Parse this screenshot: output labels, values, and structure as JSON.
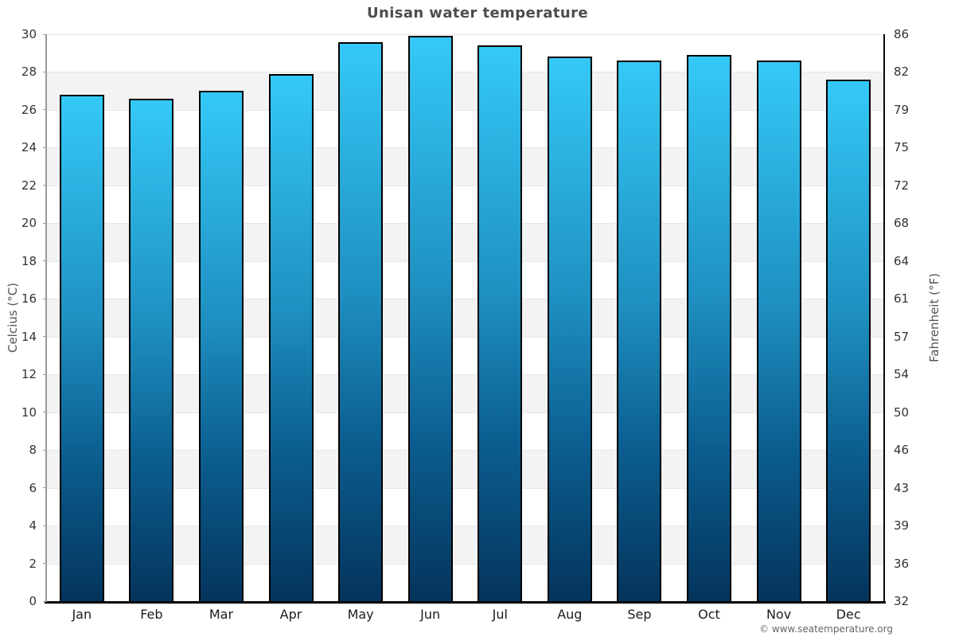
{
  "title": "Unisan water temperature",
  "footer": "© www.seatemperature.org",
  "chart_data": {
    "type": "bar",
    "title": "Unisan water temperature",
    "categories": [
      "Jan",
      "Feb",
      "Mar",
      "Apr",
      "May",
      "Jun",
      "Jul",
      "Aug",
      "Sep",
      "Oct",
      "Nov",
      "Dec"
    ],
    "values": [
      26.8,
      26.6,
      27.0,
      27.9,
      29.6,
      29.9,
      29.4,
      28.8,
      28.6,
      28.9,
      28.6,
      27.6
    ],
    "xlabel": "",
    "ylabel_left": "Celcius (°C)",
    "ylabel_right": "Fahrenheit (°F)",
    "ylim": [
      0,
      30
    ],
    "yticks_celsius": [
      30,
      28,
      26,
      24,
      22,
      20,
      18,
      16,
      14,
      12,
      10,
      8,
      6,
      4,
      2,
      0
    ],
    "yticks_fahrenheit": [
      86,
      82,
      79,
      75,
      72,
      68,
      64,
      61,
      57,
      54,
      50,
      46,
      43,
      39,
      36,
      32
    ],
    "grid": "horizontal alternating bands, gridline every 2°C, no vertical gridlines",
    "legend": "none",
    "colors": {
      "bar_gradient_top": "#35c9f7",
      "bar_gradient_bottom": "#04345c",
      "bar_border": "#000000",
      "band_gray": "#f3f3f3",
      "band_white": "#ffffff",
      "gridline": "#e7e7e7",
      "axis_left": "#9a9a9a",
      "axis_right": "#0a0a0a",
      "axis_bottom": "#000000",
      "title_text": "#4d4d4d",
      "tick_text": "#333333",
      "footer_text": "#666666"
    }
  }
}
